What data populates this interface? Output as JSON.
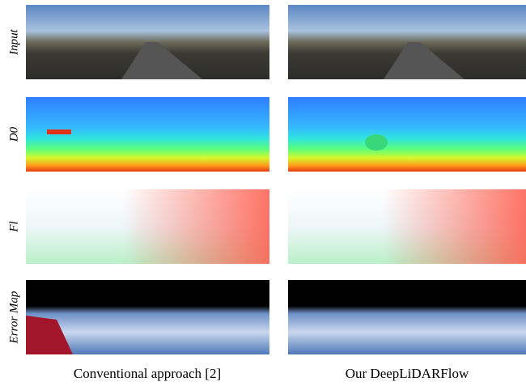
{
  "rows": [
    {
      "label": "Input"
    },
    {
      "label": "D0"
    },
    {
      "label": "Fl"
    },
    {
      "label": "Error Map"
    }
  ],
  "columns": [
    {
      "caption": "Conventional approach [2]"
    },
    {
      "caption": "Our DeepLiDARFlow"
    }
  ]
}
